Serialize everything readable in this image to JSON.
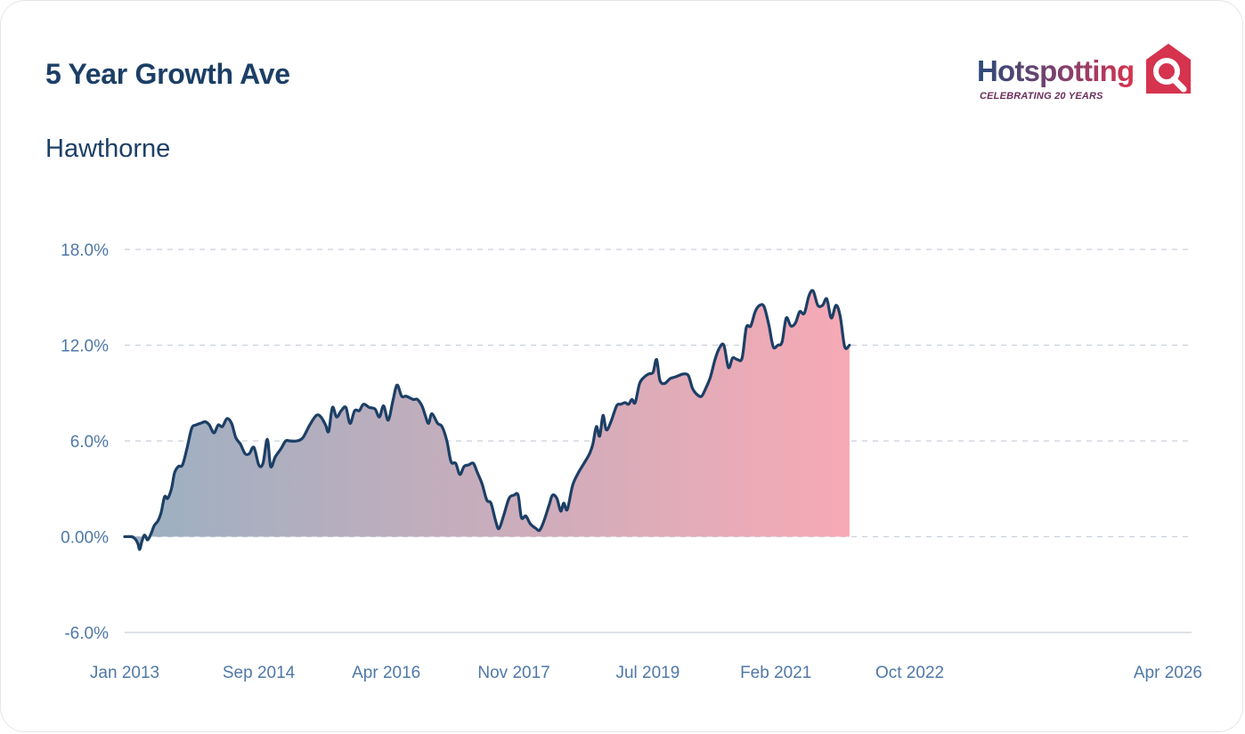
{
  "header": {
    "title": "5 Year Growth Ave",
    "subtitle": "Hawthorne"
  },
  "logo": {
    "wordmark": "Hotspotting",
    "tagline": "CELEBRATING 20 YEARS",
    "icon": "house-magnifier-icon"
  },
  "colors": {
    "line": "#1c3f66",
    "fill_start": "#9ab0c2",
    "fill_end": "#f7aab5",
    "grid": "#c9d1db",
    "tick_text": "#4f78a8",
    "title": "#1c3f66",
    "logo_red": "#d6334f"
  },
  "chart_data": {
    "type": "area",
    "title": "5 Year Growth Ave",
    "subtitle": "Hawthorne",
    "xlabel": "",
    "ylabel": "",
    "x_range": [
      "2013-01",
      "2026-04"
    ],
    "ylim": [
      -6,
      18
    ],
    "yticks": [
      18,
      12,
      6,
      0,
      -6
    ],
    "ytick_labels": [
      "18.0%",
      "12.0%",
      "6.0%",
      "0.00%",
      "-6.0%"
    ],
    "xtick_labels": [
      "Jan 2013",
      "Sep 2014",
      "Apr 2016",
      "Nov 2017",
      "Jul 2019",
      "Feb 2021",
      "Oct 2022",
      "Apr 2026"
    ],
    "xtick_dates": [
      "2013-01",
      "2014-09",
      "2016-04",
      "2017-11",
      "2019-07",
      "2021-02",
      "2022-10",
      "2026-04"
    ],
    "grid": true,
    "legend": "none",
    "series": [
      {
        "points": [
          [
            "2013-01-01",
            0.0
          ],
          [
            "2013-02-01",
            0.0
          ],
          [
            "2013-02-15",
            -0.1
          ],
          [
            "2013-03-01",
            -0.4
          ],
          [
            "2013-03-10",
            -0.8
          ],
          [
            "2013-03-20",
            -0.3
          ],
          [
            "2013-04-01",
            0.1
          ],
          [
            "2013-04-15",
            -0.2
          ],
          [
            "2013-05-01",
            0.2
          ],
          [
            "2013-05-15",
            0.7
          ],
          [
            "2013-06-01",
            1.0
          ],
          [
            "2013-06-15",
            1.5
          ],
          [
            "2013-07-01",
            2.5
          ],
          [
            "2013-07-15",
            2.4
          ],
          [
            "2013-08-01",
            3.0
          ],
          [
            "2013-08-15",
            4.0
          ],
          [
            "2013-09-01",
            4.4
          ],
          [
            "2013-09-20",
            4.5
          ],
          [
            "2013-10-10",
            5.5
          ],
          [
            "2013-11-01",
            6.8
          ],
          [
            "2013-11-20",
            7.0
          ],
          [
            "2013-12-10",
            7.1
          ],
          [
            "2014-01-01",
            7.2
          ],
          [
            "2014-01-20",
            7.0
          ],
          [
            "2014-02-10",
            6.5
          ],
          [
            "2014-03-01",
            7.0
          ],
          [
            "2014-03-20",
            6.9
          ],
          [
            "2014-04-10",
            7.4
          ],
          [
            "2014-05-01",
            7.1
          ],
          [
            "2014-05-20",
            6.2
          ],
          [
            "2014-06-10",
            5.8
          ],
          [
            "2014-07-01",
            5.2
          ],
          [
            "2014-07-20",
            5.2
          ],
          [
            "2014-08-10",
            5.6
          ],
          [
            "2014-09-01",
            4.5
          ],
          [
            "2014-09-20",
            4.6
          ],
          [
            "2014-10-10",
            6.1
          ],
          [
            "2014-10-25",
            4.4
          ],
          [
            "2014-11-15",
            5.0
          ],
          [
            "2014-12-10",
            5.5
          ],
          [
            "2015-01-01",
            6.0
          ],
          [
            "2015-01-20",
            6.0
          ],
          [
            "2015-02-20",
            6.0
          ],
          [
            "2015-03-20",
            6.2
          ],
          [
            "2015-04-20",
            7.0
          ],
          [
            "2015-05-20",
            7.6
          ],
          [
            "2015-06-10",
            7.5
          ],
          [
            "2015-07-01",
            7.0
          ],
          [
            "2015-07-15",
            6.6
          ],
          [
            "2015-08-01",
            8.1
          ],
          [
            "2015-08-20",
            7.5
          ],
          [
            "2015-09-10",
            7.9
          ],
          [
            "2015-10-01",
            8.1
          ],
          [
            "2015-10-20",
            7.1
          ],
          [
            "2015-11-10",
            7.9
          ],
          [
            "2015-12-01",
            7.9
          ],
          [
            "2015-12-20",
            8.3
          ],
          [
            "2016-01-15",
            8.1
          ],
          [
            "2016-02-10",
            8.0
          ],
          [
            "2016-03-01",
            7.5
          ],
          [
            "2016-03-20",
            8.2
          ],
          [
            "2016-04-10",
            7.3
          ],
          [
            "2016-05-01",
            8.5
          ],
          [
            "2016-05-20",
            9.5
          ],
          [
            "2016-06-10",
            8.8
          ],
          [
            "2016-07-01",
            8.8
          ],
          [
            "2016-08-01",
            8.6
          ],
          [
            "2016-08-20",
            8.6
          ],
          [
            "2016-09-10",
            8.2
          ],
          [
            "2016-09-25",
            7.6
          ],
          [
            "2016-10-10",
            7.1
          ],
          [
            "2016-10-25",
            7.7
          ],
          [
            "2016-11-20",
            7.1
          ],
          [
            "2016-12-10",
            6.9
          ],
          [
            "2017-01-01",
            6.0
          ],
          [
            "2017-01-20",
            4.7
          ],
          [
            "2017-02-10",
            4.6
          ],
          [
            "2017-03-01",
            3.9
          ],
          [
            "2017-03-20",
            4.4
          ],
          [
            "2017-04-10",
            4.5
          ],
          [
            "2017-05-01",
            4.6
          ],
          [
            "2017-05-20",
            4.0
          ],
          [
            "2017-06-10",
            3.3
          ],
          [
            "2017-07-01",
            2.3
          ],
          [
            "2017-07-20",
            2.1
          ],
          [
            "2017-08-10",
            1.0
          ],
          [
            "2017-08-25",
            0.5
          ],
          [
            "2017-09-15",
            1.3
          ],
          [
            "2017-10-10",
            2.4
          ],
          [
            "2017-11-01",
            2.6
          ],
          [
            "2017-11-20",
            2.6
          ],
          [
            "2017-12-05",
            1.2
          ],
          [
            "2017-12-25",
            1.3
          ],
          [
            "2018-01-15",
            0.8
          ],
          [
            "2018-02-10",
            0.5
          ],
          [
            "2018-02-25",
            0.4
          ],
          [
            "2018-03-15",
            0.9
          ],
          [
            "2018-04-10",
            2.0
          ],
          [
            "2018-04-25",
            2.6
          ],
          [
            "2018-05-15",
            2.4
          ],
          [
            "2018-06-01",
            1.6
          ],
          [
            "2018-06-15",
            2.1
          ],
          [
            "2018-07-01",
            1.7
          ],
          [
            "2018-07-25",
            3.2
          ],
          [
            "2018-08-20",
            4.0
          ],
          [
            "2018-09-15",
            4.6
          ],
          [
            "2018-10-10",
            5.2
          ],
          [
            "2018-10-25",
            5.8
          ],
          [
            "2018-11-10",
            6.9
          ],
          [
            "2018-11-25",
            6.3
          ],
          [
            "2018-12-10",
            7.6
          ],
          [
            "2018-12-25",
            6.7
          ],
          [
            "2019-01-15",
            7.2
          ],
          [
            "2019-02-10",
            8.2
          ],
          [
            "2019-03-01",
            8.3
          ],
          [
            "2019-03-20",
            8.4
          ],
          [
            "2019-04-05",
            8.3
          ],
          [
            "2019-04-20",
            8.6
          ],
          [
            "2019-05-05",
            8.4
          ],
          [
            "2019-05-25",
            9.6
          ],
          [
            "2019-06-15",
            10.0
          ],
          [
            "2019-07-05",
            10.2
          ],
          [
            "2019-07-25",
            10.3
          ],
          [
            "2019-08-10",
            11.1
          ],
          [
            "2019-08-25",
            9.8
          ],
          [
            "2019-09-15",
            9.6
          ],
          [
            "2019-10-10",
            9.9
          ],
          [
            "2019-11-01",
            10.0
          ],
          [
            "2019-11-20",
            10.1
          ],
          [
            "2019-12-10",
            10.2
          ],
          [
            "2020-01-01",
            10.1
          ],
          [
            "2020-01-20",
            9.3
          ],
          [
            "2020-02-10",
            8.9
          ],
          [
            "2020-03-01",
            8.8
          ],
          [
            "2020-03-20",
            9.3
          ],
          [
            "2020-04-10",
            10.0
          ],
          [
            "2020-05-01",
            11.1
          ],
          [
            "2020-05-20",
            11.8
          ],
          [
            "2020-06-10",
            12.0
          ],
          [
            "2020-07-01",
            10.6
          ],
          [
            "2020-07-20",
            11.2
          ],
          [
            "2020-08-10",
            11.1
          ],
          [
            "2020-09-01",
            11.2
          ],
          [
            "2020-09-20",
            13.1
          ],
          [
            "2020-10-10",
            13.2
          ],
          [
            "2020-10-30",
            14.1
          ],
          [
            "2020-11-20",
            14.5
          ],
          [
            "2020-12-10",
            14.4
          ],
          [
            "2021-01-01",
            13.2
          ],
          [
            "2021-01-20",
            11.9
          ],
          [
            "2021-02-10",
            12.0
          ],
          [
            "2021-03-01",
            12.2
          ],
          [
            "2021-03-20",
            13.7
          ],
          [
            "2021-04-10",
            13.2
          ],
          [
            "2021-05-01",
            13.4
          ],
          [
            "2021-05-20",
            14.1
          ],
          [
            "2021-06-10",
            14.0
          ],
          [
            "2021-07-01",
            15.1
          ],
          [
            "2021-07-20",
            15.4
          ],
          [
            "2021-08-10",
            14.5
          ],
          [
            "2021-09-01",
            14.5
          ],
          [
            "2021-09-20",
            14.9
          ],
          [
            "2021-10-10",
            13.7
          ],
          [
            "2021-11-01",
            14.5
          ],
          [
            "2021-11-20",
            13.8
          ],
          [
            "2021-12-10",
            11.9
          ],
          [
            "2022-01-01",
            12.0
          ]
        ]
      }
    ]
  }
}
